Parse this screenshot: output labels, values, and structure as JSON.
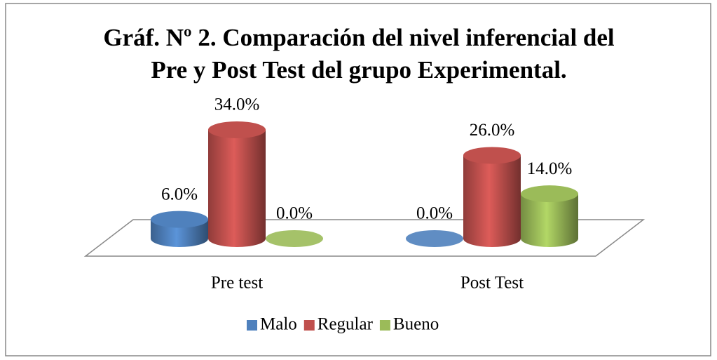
{
  "chart_data": {
    "type": "bar3d",
    "title": [
      "Gráf. Nº 2. Comparación del nivel inferencial del",
      "Pre y Post Test del grupo Experimental."
    ],
    "categories": [
      "Pre test",
      "Post Test"
    ],
    "series": [
      {
        "name": "Malo",
        "color": "#4f81bd",
        "values": [
          6,
          0
        ],
        "value_labels": [
          "6.0%",
          "0.0%"
        ]
      },
      {
        "name": "Regular",
        "color": "#c0504d",
        "values": [
          34,
          26
        ],
        "value_labels": [
          "34.0%",
          "26.0%"
        ]
      },
      {
        "name": "Bueno",
        "color": "#9bbb59",
        "values": [
          0,
          14
        ],
        "value_labels": [
          "0.0%",
          "14.0%"
        ]
      }
    ],
    "legend": "bottom"
  }
}
